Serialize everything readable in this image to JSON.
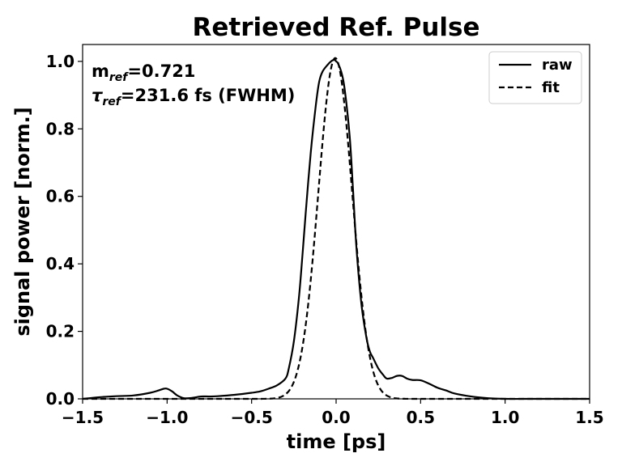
{
  "chart_data": {
    "type": "line",
    "title": "Retrieved Ref. Pulse",
    "xlabel": "time [ps]",
    "ylabel": "signal power [norm.]",
    "xlim": [
      -1.5,
      1.5
    ],
    "ylim": [
      0.0,
      1.05
    ],
    "xticks": [
      -1.5,
      -1.0,
      -0.5,
      0.0,
      0.5,
      1.0,
      1.5
    ],
    "xtick_labels": [
      "−1.5",
      "−1.0",
      "−0.5",
      "0.0",
      "0.5",
      "1.0",
      "1.5"
    ],
    "yticks": [
      0.0,
      0.2,
      0.4,
      0.6,
      0.8,
      1.0
    ],
    "ytick_labels": [
      "0.0",
      "0.2",
      "0.4",
      "0.6",
      "0.8",
      "1.0"
    ],
    "grid": false,
    "legend_position": "top-right",
    "annotations": {
      "m_main": "m",
      "m_sub": "ref",
      "m_value": "=0.721",
      "tau_main": "τ",
      "tau_sub": "ref",
      "tau_value": "=231.6 fs (FWHM)"
    },
    "series": [
      {
        "name": "raw",
        "style": "solid",
        "color": "#000000",
        "x": [
          -1.5,
          -1.4,
          -1.3,
          -1.2,
          -1.1,
          -1.05,
          -1.02,
          -1.0,
          -0.97,
          -0.94,
          -0.9,
          -0.85,
          -0.8,
          -0.75,
          -0.7,
          -0.6,
          -0.5,
          -0.45,
          -0.4,
          -0.35,
          -0.3,
          -0.28,
          -0.25,
          -0.22,
          -0.2,
          -0.18,
          -0.15,
          -0.12,
          -0.1,
          -0.08,
          -0.05,
          -0.03,
          -0.01,
          0.0,
          0.01,
          0.03,
          0.05,
          0.08,
          0.1,
          0.12,
          0.15,
          0.18,
          0.2,
          0.22,
          0.25,
          0.28,
          0.3,
          0.33,
          0.36,
          0.39,
          0.42,
          0.45,
          0.5,
          0.55,
          0.6,
          0.65,
          0.7,
          0.8,
          0.9,
          1.0,
          1.2,
          1.5
        ],
        "y": [
          0.0,
          0.005,
          0.008,
          0.01,
          0.018,
          0.025,
          0.03,
          0.03,
          0.022,
          0.01,
          0.002,
          0.003,
          0.007,
          0.007,
          0.008,
          0.012,
          0.018,
          0.022,
          0.03,
          0.04,
          0.06,
          0.09,
          0.17,
          0.3,
          0.42,
          0.55,
          0.73,
          0.87,
          0.94,
          0.97,
          0.99,
          1.0,
          1.005,
          1.0,
          0.995,
          0.97,
          0.92,
          0.78,
          0.62,
          0.45,
          0.28,
          0.18,
          0.14,
          0.12,
          0.09,
          0.07,
          0.06,
          0.062,
          0.068,
          0.068,
          0.06,
          0.056,
          0.055,
          0.045,
          0.033,
          0.025,
          0.016,
          0.007,
          0.002,
          0.0,
          0.0,
          0.0
        ]
      },
      {
        "name": "fit",
        "style": "dashed",
        "color": "#000000",
        "gaussian": {
          "mu": -0.005,
          "sigma": 0.1,
          "amp": 1.01
        }
      }
    ]
  }
}
